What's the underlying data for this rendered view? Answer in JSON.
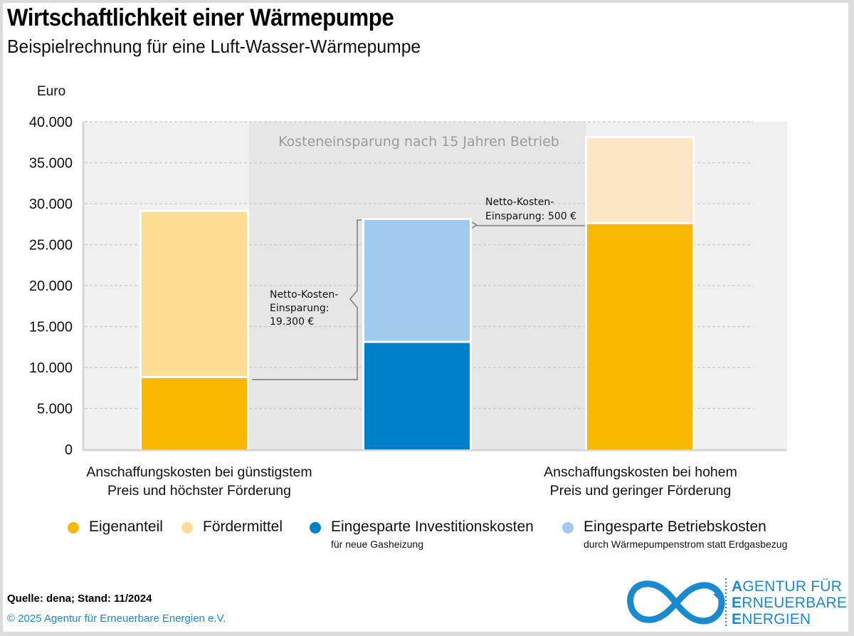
{
  "header": {
    "title": "Wirtschaftlichkeit einer Wärmepumpe",
    "subtitle": "Beispielrechnung für eine Luft-Wasser-Wärmepumpe"
  },
  "colors": {
    "eigenanteil": "#FAB800",
    "foerdermittel": "#FDDC93",
    "foerdermittel_light": "#FCE6C6",
    "investition": "#0080C9",
    "betrieb": "#A1CBEE",
    "plot_bg": "#F0F0F0",
    "band_bg": "#E6E6E6",
    "brand_blue": "#1A8AD0"
  },
  "chart_data": {
    "type": "bar",
    "stacked": true,
    "title": "Wirtschaftlichkeit einer Wärmepumpe",
    "subtitle": "Beispielrechnung für eine Luft-Wasser-Wärmepumpe",
    "ylabel": "Euro",
    "xlabel": "",
    "ylim": [
      0,
      40000
    ],
    "yticks": [
      0,
      5000,
      10000,
      15000,
      20000,
      25000,
      30000,
      35000,
      40000
    ],
    "ytick_labels": [
      "0",
      "5.000",
      "10.000",
      "15.000",
      "20.000",
      "25.000",
      "30.000",
      "35.000",
      "40.000"
    ],
    "grid": true,
    "categories": [
      "Anschaffungskosten bei günstigstem Preis und höchster Förderung",
      "Kosteneinsparung nach 15 Jahren Betrieb",
      "Anschaffungskosten bei hohem Preis und geringer Förderung"
    ],
    "category_labels": [
      [
        "Anschaffungskosten bei günstigstem",
        "Preis und höchster Förderung"
      ],
      [],
      [
        "Anschaffungskosten bei hohem",
        "Preis und geringer Förderung"
      ]
    ],
    "bars": [
      {
        "name": "Anschaffungskosten bei günstigstem Preis und höchster Förderung",
        "segments": [
          {
            "series": "Eigenanteil",
            "value": 8700,
            "color": "#FAB800"
          },
          {
            "series": "Fördermittel",
            "value": 20300,
            "color": "#FDDC93"
          }
        ]
      },
      {
        "name": "Kosteneinsparung nach 15 Jahren Betrieb",
        "segments": [
          {
            "series": "Eingesparte Investitionskosten",
            "value": 13000,
            "color": "#0080C9"
          },
          {
            "series": "Eingesparte Betriebskosten",
            "value": 15000,
            "color": "#A1CBEE"
          }
        ]
      },
      {
        "name": "Anschaffungskosten bei hohem Preis und geringer Förderung",
        "segments": [
          {
            "series": "Eigenanteil",
            "value": 27500,
            "color": "#FAB800"
          },
          {
            "series": "Fördermittel",
            "value": 10500,
            "color": "#FCE6C6"
          }
        ]
      }
    ],
    "series": [
      {
        "name": "Eigenanteil",
        "values": [
          8700,
          0,
          27500
        ]
      },
      {
        "name": "Fördermittel",
        "values": [
          20300,
          0,
          10500
        ]
      },
      {
        "name": "Eingesparte Investitionskosten",
        "values": [
          0,
          13000,
          0
        ]
      },
      {
        "name": "Eingesparte Betriebskosten",
        "values": [
          0,
          15000,
          0
        ]
      }
    ],
    "highlight_band": {
      "label": "Kosteneinsparung nach 15 Jahren Betrieb",
      "category_index": 1
    },
    "annotations": [
      {
        "lines": [
          "Netto-Kosten-",
          "Einsparung:",
          "19.300 €"
        ],
        "value": 19300,
        "between": [
          0,
          1
        ]
      },
      {
        "lines": [
          "Netto-Kosten-",
          "Einsparung: 500 €"
        ],
        "value": 500,
        "between": [
          1,
          2
        ]
      }
    ],
    "legend": {
      "position": "bottom",
      "entries": [
        {
          "label": "Eigenanteil",
          "sublabel": "",
          "color": "#FAB800"
        },
        {
          "label": "Fördermittel",
          "sublabel": "",
          "color": "#FDDC93"
        },
        {
          "label": "Eingesparte Investitionskosten",
          "sublabel": "für neue Gasheizung",
          "color": "#0080C9"
        },
        {
          "label": "Eingesparte Betriebskosten",
          "sublabel": "durch Wärmepumpenstrom statt Erdgasbezug",
          "color": "#A1CBEE"
        }
      ]
    }
  },
  "footer": {
    "source": "Quelle: dena; Stand: 11/2024",
    "copyright": "© 2025 Agentur für Erneuerbare Energien e.V.",
    "logo": {
      "icon": "infinity-icon",
      "lines": [
        {
          "first": "A",
          "rest": "GENTUR FÜR"
        },
        {
          "first": "E",
          "rest": "RNEUERBARE"
        },
        {
          "first": "E",
          "rest": "NERGIEN"
        }
      ]
    }
  }
}
